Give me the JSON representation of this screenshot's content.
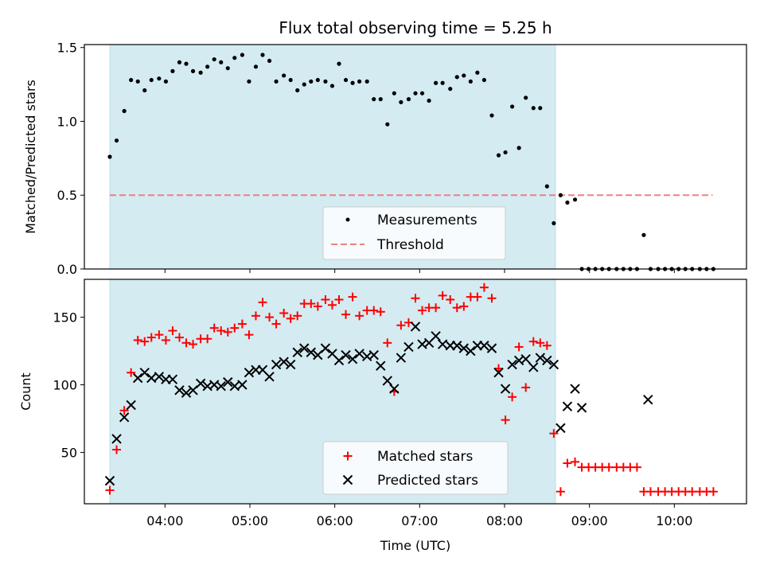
{
  "chart_data": [
    {
      "type": "scatter",
      "title": "Flux total observing time = 5.25 h",
      "xlabel": "",
      "ylabel": "Matched/Predicted stars",
      "ylim": [
        0,
        1.52
      ],
      "yticks": [
        "0.0",
        "0.5",
        "1.0",
        "1.5"
      ],
      "ytick_values": [
        0,
        0.5,
        1.0,
        1.5
      ],
      "xlim_hours": [
        3.05,
        10.85
      ],
      "observing_window_hours": [
        3.35,
        8.6
      ],
      "observing_window_color": "#d4ebf2",
      "threshold": {
        "name": "Threshold",
        "y": 0.5,
        "x_start_hours": 3.35,
        "x_end_hours": 10.45,
        "color": "#f08080"
      },
      "legend": {
        "placement": "lower-center",
        "entries": [
          "Measurements",
          "Threshold"
        ]
      },
      "series": [
        {
          "name": "Measurements",
          "marker": "dot",
          "color": "#000000",
          "x_hours": [
            3.35,
            3.43,
            3.52,
            3.6,
            3.68,
            3.76,
            3.84,
            3.93,
            4.01,
            4.09,
            4.17,
            4.25,
            4.33,
            4.42,
            4.5,
            4.58,
            4.66,
            4.74,
            4.82,
            4.91,
            4.99,
            5.07,
            5.15,
            5.23,
            5.31,
            5.4,
            5.48,
            5.56,
            5.64,
            5.72,
            5.8,
            5.89,
            5.97,
            6.05,
            6.13,
            6.21,
            6.29,
            6.38,
            6.46,
            6.54,
            6.62,
            6.7,
            6.78,
            6.87,
            6.95,
            7.03,
            7.11,
            7.19,
            7.27,
            7.36,
            7.44,
            7.52,
            7.6,
            7.68,
            7.76,
            7.85,
            7.93,
            8.01,
            8.09,
            8.17,
            8.25,
            8.34,
            8.42,
            8.5,
            8.58,
            8.66,
            8.74,
            8.83,
            8.91,
            8.99,
            9.07,
            9.15,
            9.23,
            9.32,
            9.4,
            9.48,
            9.56,
            9.64,
            9.72,
            9.81,
            9.89,
            9.97,
            10.05,
            10.13,
            10.21,
            10.3,
            10.38,
            10.46
          ],
          "y": [
            0.76,
            0.87,
            1.07,
            1.28,
            1.27,
            1.21,
            1.28,
            1.29,
            1.27,
            1.34,
            1.4,
            1.39,
            1.34,
            1.33,
            1.37,
            1.42,
            1.4,
            1.36,
            1.43,
            1.45,
            1.27,
            1.37,
            1.45,
            1.41,
            1.27,
            1.31,
            1.28,
            1.21,
            1.25,
            1.27,
            1.28,
            1.27,
            1.24,
            1.39,
            1.28,
            1.26,
            1.27,
            1.27,
            1.15,
            1.15,
            0.98,
            1.19,
            1.13,
            1.15,
            1.19,
            1.19,
            1.14,
            1.26,
            1.26,
            1.22,
            1.3,
            1.31,
            1.27,
            1.33,
            1.28,
            1.04,
            0.77,
            0.79,
            1.1,
            0.82,
            1.16,
            1.09,
            1.09,
            0.56,
            0.31,
            0.5,
            0.45,
            0.47,
            0,
            0,
            0,
            0,
            0,
            0,
            0,
            0,
            0,
            0.23,
            0,
            0,
            0,
            0,
            0,
            0,
            0,
            0,
            0,
            0
          ]
        }
      ]
    },
    {
      "type": "scatter",
      "title": "",
      "xlabel": "Time (UTC)",
      "ylabel": "Count",
      "ylim": [
        12,
        178
      ],
      "yticks": [
        "50",
        "100",
        "150"
      ],
      "ytick_values": [
        50,
        100,
        150
      ],
      "xlim_hours": [
        3.05,
        10.85
      ],
      "xticks": [
        "04:00",
        "05:00",
        "06:00",
        "07:00",
        "08:00",
        "09:00",
        "10:00"
      ],
      "xtick_hours": [
        4,
        5,
        6,
        7,
        8,
        9,
        10
      ],
      "observing_window_hours": [
        3.35,
        8.6
      ],
      "observing_window_color": "#d4ebf2",
      "legend": {
        "placement": "lower-center",
        "entries": [
          "Matched stars",
          "Predicted stars"
        ]
      },
      "series": [
        {
          "name": "Matched stars",
          "marker": "plus",
          "color": "#ff0000",
          "x_hours": [
            3.35,
            3.43,
            3.52,
            3.6,
            3.68,
            3.76,
            3.84,
            3.93,
            4.01,
            4.09,
            4.17,
            4.25,
            4.33,
            4.42,
            4.5,
            4.58,
            4.66,
            4.74,
            4.82,
            4.91,
            4.99,
            5.07,
            5.15,
            5.23,
            5.31,
            5.4,
            5.48,
            5.56,
            5.64,
            5.72,
            5.8,
            5.89,
            5.97,
            6.05,
            6.13,
            6.21,
            6.29,
            6.38,
            6.46,
            6.54,
            6.62,
            6.7,
            6.78,
            6.87,
            6.95,
            7.03,
            7.11,
            7.19,
            7.27,
            7.36,
            7.44,
            7.52,
            7.6,
            7.68,
            7.76,
            7.85,
            7.93,
            8.01,
            8.09,
            8.17,
            8.25,
            8.34,
            8.42,
            8.5,
            8.58,
            8.66,
            8.74,
            8.83,
            8.91,
            8.99,
            9.07,
            9.15,
            9.23,
            9.32,
            9.4,
            9.48,
            9.56,
            9.64,
            9.72,
            9.81,
            9.89,
            9.97,
            10.05,
            10.13,
            10.21,
            10.3,
            10.38,
            10.46
          ],
          "y": [
            22,
            52,
            81,
            109,
            133,
            132,
            135,
            137,
            133,
            140,
            135,
            131,
            130,
            134,
            134,
            142,
            140,
            139,
            142,
            145,
            137,
            151,
            161,
            150,
            145,
            153,
            149,
            151,
            160,
            160,
            158,
            163,
            159,
            163,
            152,
            165,
            151,
            155,
            155,
            154,
            131,
            95,
            144,
            146,
            164,
            155,
            157,
            157,
            166,
            163,
            157,
            158,
            165,
            165,
            172,
            164,
            112,
            74,
            91,
            128,
            98,
            132,
            131,
            129,
            64,
            21,
            42,
            43,
            39,
            39,
            39,
            39,
            39,
            39,
            39,
            39,
            39,
            21,
            21,
            21,
            21,
            21,
            21,
            21,
            21,
            21,
            21,
            21
          ]
        },
        {
          "name": "Predicted stars",
          "marker": "x",
          "color": "#000000",
          "x_hours": [
            3.35,
            3.43,
            3.52,
            3.6,
            3.68,
            3.76,
            3.84,
            3.93,
            4.01,
            4.09,
            4.17,
            4.25,
            4.33,
            4.42,
            4.5,
            4.58,
            4.66,
            4.74,
            4.82,
            4.91,
            4.99,
            5.07,
            5.15,
            5.23,
            5.31,
            5.4,
            5.48,
            5.56,
            5.64,
            5.72,
            5.8,
            5.89,
            5.97,
            6.05,
            6.13,
            6.21,
            6.29,
            6.38,
            6.46,
            6.54,
            6.62,
            6.7,
            6.78,
            6.87,
            6.95,
            7.03,
            7.11,
            7.19,
            7.27,
            7.36,
            7.44,
            7.52,
            7.6,
            7.68,
            7.76,
            7.85,
            7.93,
            8.01,
            8.09,
            8.17,
            8.25,
            8.34,
            8.42,
            8.5,
            8.58,
            8.66,
            8.74,
            8.83,
            8.91,
            9.69
          ],
          "y": [
            29,
            60,
            76,
            85,
            105,
            109,
            105,
            106,
            104,
            104,
            96,
            94,
            96,
            101,
            99,
            100,
            99,
            102,
            99,
            100,
            109,
            111,
            111,
            106,
            115,
            117,
            115,
            124,
            127,
            124,
            122,
            127,
            123,
            118,
            122,
            119,
            123,
            121,
            122,
            114,
            103,
            97,
            120,
            128,
            143,
            130,
            131,
            136,
            130,
            129,
            129,
            127,
            125,
            129,
            129,
            127,
            109,
            97,
            115,
            118,
            119,
            113,
            120,
            118,
            115,
            68,
            84,
            97,
            83,
            89
          ]
        }
      ]
    }
  ]
}
